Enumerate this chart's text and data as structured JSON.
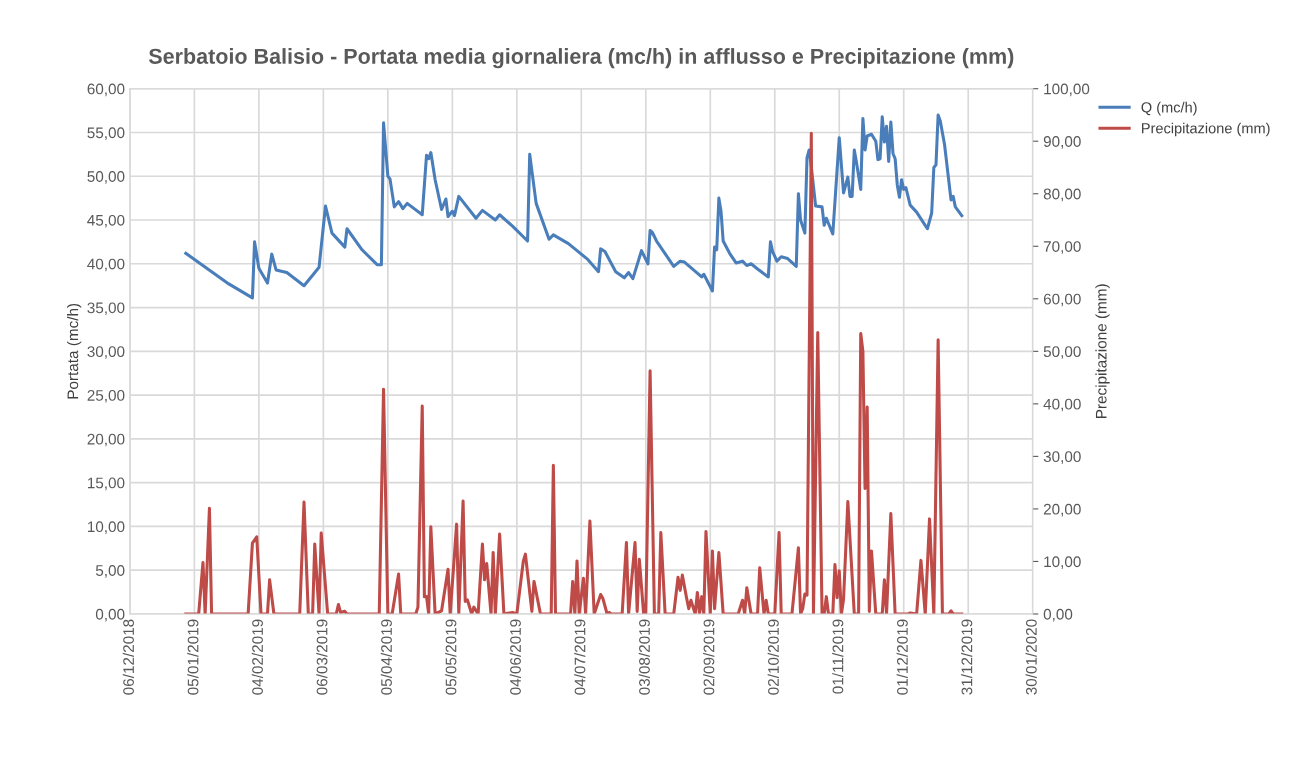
{
  "chart_data": {
    "type": "line",
    "title": "Serbatoio Balisio - Portata media giornaliera (mc/h) in afflusso e Precipitazione (mm)",
    "ylabel": "Portata (mc/h)",
    "y2label": "Precipitazione (mm)",
    "xlim": [
      "2018-12-06",
      "2020-01-30"
    ],
    "xticks": [
      {
        "value": "2018-12-06",
        "label": "06/12/2018"
      },
      {
        "value": "2019-01-05",
        "label": "05/01/2019"
      },
      {
        "value": "2019-02-04",
        "label": "04/02/2019"
      },
      {
        "value": "2019-03-06",
        "label": "06/03/2019"
      },
      {
        "value": "2019-04-05",
        "label": "05/04/2019"
      },
      {
        "value": "2019-05-05",
        "label": "05/05/2019"
      },
      {
        "value": "2019-06-04",
        "label": "04/06/2019"
      },
      {
        "value": "2019-07-04",
        "label": "04/07/2019"
      },
      {
        "value": "2019-08-03",
        "label": "03/08/2019"
      },
      {
        "value": "2019-09-02",
        "label": "02/09/2019"
      },
      {
        "value": "2019-10-02",
        "label": "02/10/2019"
      },
      {
        "value": "2019-11-01",
        "label": "01/11/2019"
      },
      {
        "value": "2019-12-01",
        "label": "01/12/2019"
      },
      {
        "value": "2019-12-31",
        "label": "31/12/2019"
      },
      {
        "value": "2020-01-30",
        "label": "30/01/2020"
      }
    ],
    "ylim": [
      0,
      60
    ],
    "yticks": [
      {
        "value": 0,
        "label": "0,00"
      },
      {
        "value": 5,
        "label": "5,00"
      },
      {
        "value": 10,
        "label": "10,00"
      },
      {
        "value": 15,
        "label": "15,00"
      },
      {
        "value": 20,
        "label": "20,00"
      },
      {
        "value": 25,
        "label": "25,00"
      },
      {
        "value": 30,
        "label": "30,00"
      },
      {
        "value": 35,
        "label": "35,00"
      },
      {
        "value": 40,
        "label": "40,00"
      },
      {
        "value": 45,
        "label": "45,00"
      },
      {
        "value": 50,
        "label": "50,00"
      },
      {
        "value": 55,
        "label": "55,00"
      },
      {
        "value": 60,
        "label": "60,00"
      }
    ],
    "y2lim": [
      0,
      100
    ],
    "y2ticks": [
      {
        "value": 0,
        "label": "0,00"
      },
      {
        "value": 10,
        "label": "10,00"
      },
      {
        "value": 20,
        "label": "20,00"
      },
      {
        "value": 30,
        "label": "30,00"
      },
      {
        "value": 40,
        "label": "40,00"
      },
      {
        "value": 50,
        "label": "50,00"
      },
      {
        "value": 60,
        "label": "60,00"
      },
      {
        "value": 70,
        "label": "70,00"
      },
      {
        "value": 80,
        "label": "80,00"
      },
      {
        "value": 90,
        "label": "90,00"
      },
      {
        "value": 100,
        "label": "100,00"
      }
    ],
    "grid": true,
    "legend": "top right",
    "line_style": "solid",
    "series": [
      {
        "name": "Q (mc/h)",
        "color": "#4a7ebb",
        "x": [
          "2019-01-01",
          "2019-01-21",
          "2019-02-01",
          "2019-02-02",
          "2019-02-04",
          "2019-02-08",
          "2019-02-10",
          "2019-02-12",
          "2019-02-17",
          "2019-02-25",
          "2019-03-01",
          "2019-03-04",
          "2019-03-07",
          "2019-03-10",
          "2019-03-16",
          "2019-03-17",
          "2019-03-24",
          "2019-03-31",
          "2019-04-02",
          "2019-04-03",
          "2019-04-05",
          "2019-04-06",
          "2019-04-08",
          "2019-04-10",
          "2019-04-12",
          "2019-04-14",
          "2019-04-21",
          "2019-04-23",
          "2019-04-24",
          "2019-04-25",
          "2019-04-27",
          "2019-04-30",
          "2019-05-02",
          "2019-05-03",
          "2019-05-05",
          "2019-05-06",
          "2019-05-08",
          "2019-05-16",
          "2019-05-19",
          "2019-05-25",
          "2019-05-27",
          "2019-06-02",
          "2019-06-09",
          "2019-06-10",
          "2019-06-13",
          "2019-06-19",
          "2019-06-21",
          "2019-06-28",
          "2019-07-02",
          "2019-07-07",
          "2019-07-12",
          "2019-07-13",
          "2019-07-15",
          "2019-07-20",
          "2019-07-24",
          "2019-07-26",
          "2019-07-28",
          "2019-08-01",
          "2019-08-04",
          "2019-08-05",
          "2019-08-06",
          "2019-08-08",
          "2019-08-16",
          "2019-08-19",
          "2019-08-21",
          "2019-08-29",
          "2019-08-30",
          "2019-09-03",
          "2019-09-04",
          "2019-09-05",
          "2019-09-06",
          "2019-09-07",
          "2019-09-08",
          "2019-09-11",
          "2019-09-14",
          "2019-09-17",
          "2019-09-19",
          "2019-09-21",
          "2019-09-24",
          "2019-09-29",
          "2019-09-30",
          "2019-10-01",
          "2019-10-03",
          "2019-10-05",
          "2019-10-08",
          "2019-10-12",
          "2019-10-13",
          "2019-10-14",
          "2019-10-16",
          "2019-10-17",
          "2019-10-18",
          "2019-10-19",
          "2019-10-21",
          "2019-10-24",
          "2019-10-25",
          "2019-10-26",
          "2019-10-29",
          "2019-11-01",
          "2019-11-03",
          "2019-11-05",
          "2019-11-06",
          "2019-11-07",
          "2019-11-08",
          "2019-11-09",
          "2019-11-11",
          "2019-11-12",
          "2019-11-13",
          "2019-11-14",
          "2019-11-16",
          "2019-11-18",
          "2019-11-19",
          "2019-11-20",
          "2019-11-21",
          "2019-11-22",
          "2019-11-23",
          "2019-11-24",
          "2019-11-25",
          "2019-11-26",
          "2019-11-27",
          "2019-11-28",
          "2019-11-29",
          "2019-11-30",
          "2019-12-01",
          "2019-12-02",
          "2019-12-04",
          "2019-12-07",
          "2019-12-12",
          "2019-12-14",
          "2019-12-15",
          "2019-12-16",
          "2019-12-17",
          "2019-12-18",
          "2019-12-20",
          "2019-12-23",
          "2019-12-24",
          "2019-12-25",
          "2019-12-28"
        ],
        "values": [
          41.2,
          37.7,
          36.1,
          42.5,
          39.5,
          37.8,
          41.1,
          39.3,
          39.0,
          37.5,
          38.7,
          39.6,
          46.6,
          43.5,
          41.9,
          44.0,
          41.6,
          39.9,
          39.9,
          56.1,
          50.0,
          49.7,
          46.5,
          47.1,
          46.3,
          46.9,
          45.6,
          52.4,
          52.0,
          52.7,
          49.6,
          46.2,
          47.4,
          45.4,
          46.0,
          45.5,
          47.7,
          45.2,
          46.1,
          45.0,
          45.6,
          44.3,
          42.6,
          52.5,
          46.9,
          42.8,
          43.3,
          42.3,
          41.5,
          40.5,
          39.1,
          41.7,
          41.4,
          39.1,
          38.4,
          39.0,
          38.3,
          41.5,
          40.0,
          43.8,
          43.6,
          42.6,
          39.7,
          40.3,
          40.2,
          38.5,
          38.8,
          36.9,
          41.9,
          41.6,
          47.5,
          46.0,
          42.6,
          41.2,
          40.1,
          40.3,
          39.8,
          40.0,
          39.4,
          38.5,
          42.5,
          41.4,
          40.3,
          40.8,
          40.6,
          39.7,
          48.0,
          45.0,
          43.5,
          52.1,
          53.0,
          51.1,
          46.6,
          46.5,
          44.4,
          45.2,
          43.4,
          54.4,
          48.1,
          49.9,
          47.7,
          47.7,
          53.0,
          51.6,
          48.5,
          56.6,
          53.0,
          54.6,
          54.8,
          54.0,
          51.9,
          52.0,
          56.8,
          53.9,
          55.7,
          51.7,
          56.2,
          52.6,
          52.0,
          49.0,
          47.6,
          49.6,
          48.5,
          48.7,
          46.7,
          45.9,
          44.0,
          45.8,
          51.0,
          51.3,
          57.0,
          56.3,
          53.6,
          47.3,
          47.7,
          46.5,
          45.5
        ]
      },
      {
        "name": "Precipitazione (mm)",
        "color": "#be4b48",
        "axis": "y2",
        "x": [
          "2019-01-01",
          "2019-01-07",
          "2019-01-09",
          "2019-01-10",
          "2019-01-12",
          "2019-01-13",
          "2019-01-30",
          "2019-02-01",
          "2019-02-03",
          "2019-02-05",
          "2019-02-08",
          "2019-02-09",
          "2019-02-11",
          "2019-02-23",
          "2019-02-25",
          "2019-02-27",
          "2019-03-01",
          "2019-03-02",
          "2019-03-04",
          "2019-03-05",
          "2019-03-08",
          "2019-03-12",
          "2019-03-13",
          "2019-03-14",
          "2019-03-16",
          "2019-03-17",
          "2019-04-01",
          "2019-04-03",
          "2019-04-05",
          "2019-04-07",
          "2019-04-10",
          "2019-04-11",
          "2019-04-18",
          "2019-04-19",
          "2019-04-21",
          "2019-04-22",
          "2019-04-23",
          "2019-04-24",
          "2019-04-25",
          "2019-04-27",
          "2019-04-30",
          "2019-05-03",
          "2019-05-04",
          "2019-05-07",
          "2019-05-08",
          "2019-05-10",
          "2019-05-11",
          "2019-05-12",
          "2019-05-14",
          "2019-05-15",
          "2019-05-17",
          "2019-05-19",
          "2019-05-20",
          "2019-05-21",
          "2019-05-23",
          "2019-05-24",
          "2019-05-25",
          "2019-05-27",
          "2019-05-29",
          "2019-06-02",
          "2019-06-04",
          "2019-06-07",
          "2019-06-08",
          "2019-06-11",
          "2019-06-12",
          "2019-06-15",
          "2019-06-20",
          "2019-06-21",
          "2019-06-22",
          "2019-06-29",
          "2019-06-30",
          "2019-07-01",
          "2019-07-02",
          "2019-07-03",
          "2019-07-05",
          "2019-07-06",
          "2019-07-08",
          "2019-07-10",
          "2019-07-13",
          "2019-07-14",
          "2019-07-16",
          "2019-07-17",
          "2019-07-18",
          "2019-07-23",
          "2019-07-25",
          "2019-07-26",
          "2019-07-29",
          "2019-07-30",
          "2019-07-31",
          "2019-08-02",
          "2019-08-03",
          "2019-08-05",
          "2019-08-07",
          "2019-08-09",
          "2019-08-10",
          "2019-08-12",
          "2019-08-16",
          "2019-08-18",
          "2019-08-19",
          "2019-08-20",
          "2019-08-22",
          "2019-08-23",
          "2019-08-24",
          "2019-08-26",
          "2019-08-27",
          "2019-08-28",
          "2019-08-29",
          "2019-08-30",
          "2019-08-31",
          "2019-09-02",
          "2019-09-03",
          "2019-09-04",
          "2019-09-06",
          "2019-09-08",
          "2019-09-15",
          "2019-09-17",
          "2019-09-18",
          "2019-09-19",
          "2019-09-21",
          "2019-09-24",
          "2019-09-25",
          "2019-09-27",
          "2019-09-28",
          "2019-09-29",
          "2019-10-02",
          "2019-10-04",
          "2019-10-05",
          "2019-10-10",
          "2019-10-13",
          "2019-10-14",
          "2019-10-15",
          "2019-10-16",
          "2019-10-17",
          "2019-10-19",
          "2019-10-20",
          "2019-10-22",
          "2019-10-24",
          "2019-10-25",
          "2019-10-26",
          "2019-10-27",
          "2019-10-29",
          "2019-10-30",
          "2019-10-31",
          "2019-11-01",
          "2019-11-02",
          "2019-11-03",
          "2019-11-05",
          "2019-11-08",
          "2019-11-10",
          "2019-11-11",
          "2019-11-12",
          "2019-11-13",
          "2019-11-14",
          "2019-11-15",
          "2019-11-16",
          "2019-11-18",
          "2019-11-21",
          "2019-11-22",
          "2019-11-23",
          "2019-11-25",
          "2019-11-27",
          "2019-12-03",
          "2019-12-04",
          "2019-12-07",
          "2019-12-09",
          "2019-12-11",
          "2019-12-13",
          "2019-12-15",
          "2019-12-17",
          "2019-12-19",
          "2019-12-22",
          "2019-12-23",
          "2019-12-24",
          "2019-12-28"
        ],
        "values": [
          0,
          0,
          9.8,
          0,
          20.1,
          0,
          0,
          13.5,
          14.7,
          0,
          0,
          6.5,
          0,
          0,
          21.3,
          0,
          0,
          13.3,
          0,
          15.4,
          0,
          0,
          1.8,
          0.3,
          0.5,
          0,
          0,
          42.8,
          0,
          0,
          7.6,
          0,
          0,
          1.3,
          39.6,
          3.3,
          3.3,
          0,
          16.6,
          0,
          0.6,
          8.5,
          0,
          17.1,
          0,
          21.5,
          2.4,
          2.7,
          0,
          1.3,
          0,
          13.3,
          6.5,
          9.6,
          0,
          11.7,
          0,
          15.2,
          0,
          0.3,
          0,
          10.0,
          11.4,
          0.5,
          6.2,
          0,
          0,
          28.3,
          0,
          0,
          6.2,
          0,
          10.1,
          0,
          6.8,
          0,
          17.7,
          0,
          3.7,
          3.0,
          0,
          0.3,
          0,
          0,
          13.6,
          0,
          13.6,
          0.5,
          10.4,
          0,
          0,
          46.3,
          0,
          0,
          15.5,
          0,
          0,
          7.0,
          4.5,
          7.4,
          3.0,
          1.0,
          2.6,
          0,
          4.1,
          0,
          3.3,
          0,
          15.7,
          0,
          12.0,
          1.0,
          11.7,
          0,
          0,
          2.6,
          0,
          5.0,
          0,
          0,
          8.8,
          0,
          2.6,
          0,
          0,
          15.5,
          0,
          0,
          12.6,
          0,
          1.0,
          3.8,
          3.6,
          91.5,
          0,
          53.6,
          0,
          0,
          3.3,
          0,
          0,
          9.4,
          3.1,
          8.2,
          0,
          2.8,
          21.4,
          0,
          0,
          53.4,
          50.0,
          23.9,
          39.4,
          0.5,
          12.0,
          0,
          0,
          6.5,
          0,
          19.1,
          0,
          0,
          0.2,
          0,
          10.2,
          0,
          18.1,
          0,
          52.2,
          0,
          0,
          0.6,
          0,
          0
        ]
      }
    ]
  }
}
